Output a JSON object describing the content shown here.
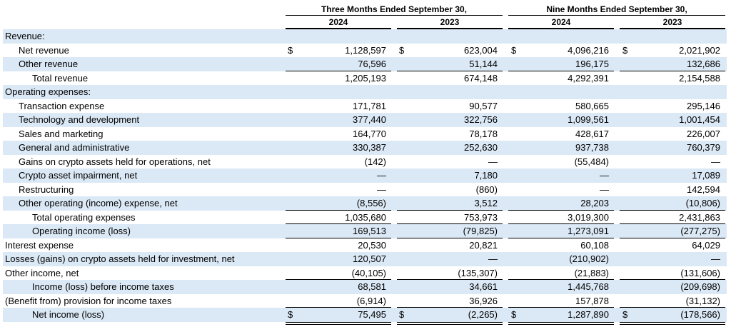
{
  "table": {
    "group_headers": [
      "Three Months Ended September 30,",
      "Nine Months Ended September 30,"
    ],
    "years": [
      "2024",
      "2023",
      "2024",
      "2023"
    ],
    "rows": [
      {
        "label": "Revenue:"
      },
      {
        "label": "Net revenue",
        "currency": [
          "$",
          "$",
          "$",
          "$"
        ],
        "values": [
          "1,128,597",
          "623,004",
          "4,096,216",
          "2,021,902"
        ]
      },
      {
        "label": "Other revenue",
        "values": [
          "76,596",
          "51,144",
          "196,175",
          "132,686"
        ]
      },
      {
        "label": "Total revenue",
        "values": [
          "1,205,193",
          "674,148",
          "4,292,391",
          "2,154,588"
        ]
      },
      {
        "label": "Operating expenses:"
      },
      {
        "label": "Transaction expense",
        "values": [
          "171,781",
          "90,577",
          "580,665",
          "295,146"
        ]
      },
      {
        "label": "Technology and development",
        "values": [
          "377,440",
          "322,756",
          "1,099,561",
          "1,001,454"
        ]
      },
      {
        "label": "Sales and marketing",
        "values": [
          "164,770",
          "78,178",
          "428,617",
          "226,007"
        ]
      },
      {
        "label": "General and administrative",
        "values": [
          "330,387",
          "252,630",
          "937,738",
          "760,379"
        ]
      },
      {
        "label": "Gains on crypto assets held for operations, net",
        "values": [
          "(142)",
          "—",
          "(55,484)",
          "—"
        ]
      },
      {
        "label": "Crypto asset impairment, net",
        "values": [
          "—",
          "7,180",
          "—",
          "17,089"
        ]
      },
      {
        "label": "Restructuring",
        "values": [
          "—",
          "(860)",
          "—",
          "142,594"
        ]
      },
      {
        "label": "Other operating (income) expense, net",
        "values": [
          "(8,556)",
          "3,512",
          "28,203",
          "(10,806)"
        ]
      },
      {
        "label": "Total operating expenses",
        "values": [
          "1,035,680",
          "753,973",
          "3,019,300",
          "2,431,863"
        ]
      },
      {
        "label": "Operating income (loss)",
        "values": [
          "169,513",
          "(79,825)",
          "1,273,091",
          "(277,275)"
        ]
      },
      {
        "label": "Interest expense",
        "values": [
          "20,530",
          "20,821",
          "60,108",
          "64,029"
        ]
      },
      {
        "label": "Losses (gains) on crypto assets held for investment, net",
        "values": [
          "120,507",
          "—",
          "(210,902)",
          "—"
        ]
      },
      {
        "label": "Other income, net",
        "values": [
          "(40,105)",
          "(135,307)",
          "(21,883)",
          "(131,606)"
        ]
      },
      {
        "label": "Income (loss) before income taxes",
        "values": [
          "68,581",
          "34,661",
          "1,445,768",
          "(209,698)"
        ]
      },
      {
        "label": "(Benefit from) provision for income taxes",
        "values": [
          "(6,914)",
          "36,926",
          "157,878",
          "(31,132)"
        ]
      },
      {
        "label": "Net income (loss)",
        "currency": [
          "$",
          "$",
          "$",
          "$"
        ],
        "values": [
          "75,495",
          "(2,265)",
          "1,287,890",
          "(178,566)"
        ]
      }
    ]
  }
}
